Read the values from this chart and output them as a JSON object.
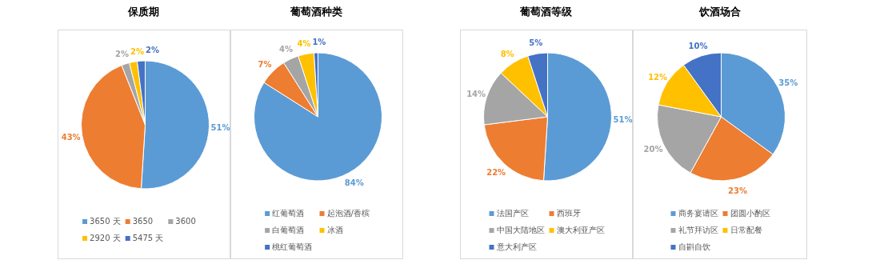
{
  "chart_data": [
    {
      "type": "pie",
      "title": "保质期",
      "categories": [
        "3650 天",
        "3650",
        "3600",
        "2920 天",
        "5475 天"
      ],
      "values": [
        51,
        43,
        2,
        2,
        2
      ],
      "value_labels": [
        "51%",
        "43%",
        "2%",
        "2%",
        "2%"
      ],
      "colors": [
        "#5b9bd5",
        "#ed7d31",
        "#a5a5a5",
        "#ffc000",
        "#4472c4"
      ],
      "legend": "bottom"
    },
    {
      "type": "pie",
      "title": "葡萄酒种类",
      "categories": [
        "红葡萄酒",
        "起泡酒/香槟",
        "白葡萄酒",
        "冰酒",
        "桃红葡萄酒"
      ],
      "values": [
        84,
        7,
        4,
        4,
        1
      ],
      "value_labels": [
        "84%",
        "7%",
        "4%",
        "4%",
        "1%"
      ],
      "colors": [
        "#5b9bd5",
        "#ed7d31",
        "#a5a5a5",
        "#ffc000",
        "#4472c4"
      ],
      "legend": "bottom"
    },
    {
      "type": "pie",
      "title": "葡萄酒等级",
      "categories": [
        "法国产区",
        "西班牙",
        "中国大陆地区",
        "澳大利亚产区",
        "意大利产区"
      ],
      "values": [
        51,
        22,
        14,
        8,
        5
      ],
      "value_labels": [
        "51%",
        "22%",
        "14%",
        "8%",
        "5%"
      ],
      "colors": [
        "#5b9bd5",
        "#ed7d31",
        "#a5a5a5",
        "#ffc000",
        "#4472c4"
      ],
      "legend": "bottom"
    },
    {
      "type": "pie",
      "title": "饮酒场合",
      "categories": [
        "商务宴请区",
        "团圆小酌区",
        "礼节拜访区",
        "日常配餐",
        "自斟自饮"
      ],
      "values": [
        35,
        23,
        20,
        12,
        10
      ],
      "value_labels": [
        "35%",
        "23%",
        "20%",
        "12%",
        "10%"
      ],
      "colors": [
        "#5b9bd5",
        "#ed7d31",
        "#a5a5a5",
        "#ffc000",
        "#4472c4"
      ],
      "legend": "bottom"
    }
  ]
}
